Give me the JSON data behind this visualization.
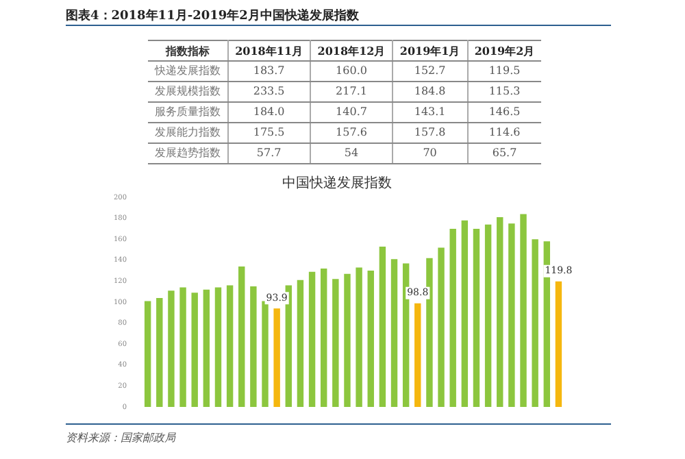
{
  "chart_data": [
    {
      "type": "other",
      "title": "图表4：2018年11月-2019年2月中国快递发展指数",
      "ylabel": "指数指标",
      "categories": [
        "2018年11月",
        "2018年12月",
        "2019年1月",
        "2019年2月"
      ],
      "y_categories": [
        "快递发展指数",
        "发展规模指数",
        "服务质量指数",
        "发展能力指数",
        "发展趋势指数"
      ],
      "cell_labels": [
        [
          "183.7",
          "160.0",
          "152.7",
          "119.5"
        ],
        [
          "233.5",
          "217.1",
          "184.8",
          "115.3"
        ],
        [
          "184.0",
          "140.7",
          "143.1",
          "146.5"
        ],
        [
          "175.5",
          "157.6",
          "157.8",
          "114.6"
        ],
        [
          "57.7",
          "54",
          "70",
          "65.7"
        ]
      ]
    },
    {
      "type": "bar",
      "title": "中国快递发展指数",
      "categories": [
        null,
        null,
        null,
        null,
        null,
        null,
        null,
        null,
        null,
        null,
        null,
        null,
        null,
        null,
        null,
        null,
        null,
        null,
        null,
        null,
        null,
        null,
        null,
        null,
        null,
        null,
        null,
        null,
        null,
        null,
        null,
        null,
        null,
        null,
        null,
        null
      ],
      "values": [
        101,
        104,
        111,
        114,
        109,
        112,
        114,
        116,
        134,
        115,
        101,
        93.9,
        116,
        121,
        129,
        132,
        122,
        127,
        133,
        130,
        153,
        141,
        137,
        98.8,
        142,
        152,
        170,
        178,
        170,
        174,
        181,
        175,
        184,
        160,
        158,
        119.8
      ],
      "colors": [
        "#8cc63e",
        "#8cc63e",
        "#8cc63e",
        "#8cc63e",
        "#8cc63e",
        "#8cc63e",
        "#8cc63e",
        "#8cc63e",
        "#8cc63e",
        "#8cc63e",
        "#8cc63e",
        "#f5b70f",
        "#8cc63e",
        "#8cc63e",
        "#8cc63e",
        "#8cc63e",
        "#8cc63e",
        "#8cc63e",
        "#8cc63e",
        "#8cc63e",
        "#8cc63e",
        "#8cc63e",
        "#8cc63e",
        "#f5b70f",
        "#8cc63e",
        "#8cc63e",
        "#8cc63e",
        "#8cc63e",
        "#8cc63e",
        "#8cc63e",
        "#8cc63e",
        "#8cc63e",
        "#8cc63e",
        "#8cc63e",
        "#8cc63e",
        "#f5b70f"
      ],
      "value_labels": [
        null,
        null,
        null,
        null,
        null,
        null,
        null,
        null,
        null,
        null,
        null,
        "93.9",
        null,
        null,
        null,
        null,
        null,
        null,
        null,
        null,
        null,
        null,
        null,
        "98.8",
        null,
        null,
        null,
        null,
        null,
        null,
        null,
        null,
        null,
        null,
        null,
        "119.8"
      ],
      "ylim": [
        0,
        200
      ],
      "yticks": [
        0,
        20,
        40,
        60,
        80,
        100,
        120,
        140,
        160,
        180,
        200
      ],
      "grid": false,
      "legend": false,
      "annotations": [
        "资料来源：国家邮政局"
      ]
    }
  ]
}
